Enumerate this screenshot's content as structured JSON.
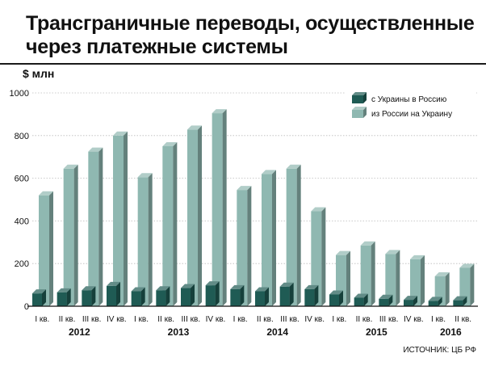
{
  "chart_data": {
    "type": "bar",
    "title_lines": [
      "Трансграничные переводы, осуществленные",
      "через платежные системы"
    ],
    "ylabel": "$ млн",
    "ylim": [
      0,
      1000
    ],
    "yticks": [
      "0",
      "200",
      "400",
      "600",
      "800",
      "1000"
    ],
    "grid": true,
    "legend_position": "top-right",
    "categories": [
      "I кв.",
      "II кв.",
      "III кв.",
      "IV кв.",
      "I кв.",
      "II кв.",
      "III кв.",
      "IV кв.",
      "I кв.",
      "II кв.",
      "III кв.",
      "IV кв.",
      "I кв.",
      "II кв.",
      "III кв.",
      "IV кв.",
      "I кв.",
      "II кв."
    ],
    "years": [
      {
        "label": "2012",
        "start": 0,
        "end": 3
      },
      {
        "label": "2013",
        "start": 4,
        "end": 7
      },
      {
        "label": "2014",
        "start": 8,
        "end": 11
      },
      {
        "label": "2015",
        "start": 12,
        "end": 15
      },
      {
        "label": "2016",
        "start": 16,
        "end": 17
      }
    ],
    "series": [
      {
        "name": "с Украины в Россию",
        "color": "#1f5b54",
        "values": [
          60,
          65,
          75,
          95,
          70,
          75,
          85,
          98,
          80,
          70,
          92,
          80,
          55,
          40,
          35,
          30,
          25,
          28
        ]
      },
      {
        "name": "из России на Украину",
        "color": "#8fb8b1",
        "values": [
          520,
          645,
          725,
          800,
          605,
          750,
          828,
          905,
          545,
          620,
          645,
          445,
          240,
          285,
          245,
          220,
          140,
          180
        ]
      }
    ],
    "source": "ИСТОЧНИК: ЦБ РФ"
  }
}
